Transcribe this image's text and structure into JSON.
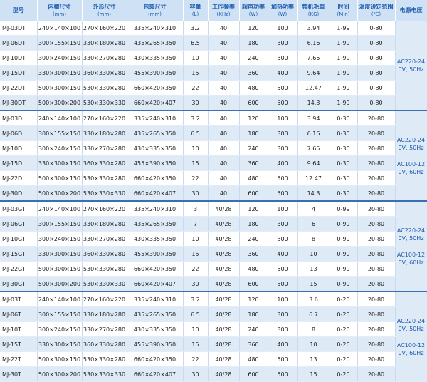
{
  "table": {
    "header": [
      {
        "title": "型号"
      },
      {
        "title": "内槽尺寸",
        "unit": "(mm)"
      },
      {
        "title": "外形尺寸",
        "unit": "(mm)"
      },
      {
        "title": "包装尺寸",
        "unit": "(mm)"
      },
      {
        "title": "容量",
        "unit": "(L)"
      },
      {
        "title": "工作频率",
        "unit": "(KHz)"
      },
      {
        "title": "超声功率",
        "unit": "(W)"
      },
      {
        "title": "加热功率",
        "unit": "(W)"
      },
      {
        "title": "整机毛重",
        "unit": "(KG)"
      },
      {
        "title": "时间",
        "unit": "(Min)"
      },
      {
        "title": "温度设定范围",
        "unit": "(℃)"
      },
      {
        "title": "电源电压"
      }
    ],
    "groups": [
      {
        "voltage": [
          "AC220-240V, 50Hz"
        ],
        "rows": [
          [
            "MJ-03DT",
            "240×140×100",
            "270×160×220",
            "335×240×310",
            "3.2",
            "40",
            "120",
            "100",
            "3.94",
            "1-99",
            "0-80"
          ],
          [
            "MJ-06DT",
            "300×155×150",
            "330×180×280",
            "435×265×350",
            "6.5",
            "40",
            "180",
            "300",
            "6.16",
            "1-99",
            "0-80"
          ],
          [
            "MJ-10DT",
            "300×240×150",
            "330×270×280",
            "430×335×350",
            "10",
            "40",
            "240",
            "300",
            "7.65",
            "1-99",
            "0-80"
          ],
          [
            "MJ-15DT",
            "330×300×150",
            "360×330×280",
            "455×390×350",
            "15",
            "40",
            "360",
            "400",
            "9.64",
            "1-99",
            "0-80"
          ],
          [
            "MJ-22DT",
            "500×300×150",
            "530×330×280",
            "660×420×350",
            "22",
            "40",
            "480",
            "500",
            "12.47",
            "1-99",
            "0-80"
          ],
          [
            "MJ-30DT",
            "500×300×200",
            "530×330×330",
            "660×420×407",
            "30",
            "40",
            "600",
            "500",
            "14.3",
            "1-99",
            "0-80"
          ]
        ]
      },
      {
        "voltage": [
          "AC220-240V, 50Hz",
          "AC100-120V, 60Hz"
        ],
        "rows": [
          [
            "MJ-03D",
            "240×140×100",
            "270×160×220",
            "335×240×310",
            "3.2",
            "40",
            "120",
            "100",
            "3.94",
            "0-30",
            "20-80"
          ],
          [
            "MJ-06D",
            "300×155×150",
            "330×180×280",
            "435×265×350",
            "6.5",
            "40",
            "180",
            "300",
            "6.16",
            "0-30",
            "20-80"
          ],
          [
            "MJ-10D",
            "300×240×150",
            "330×270×280",
            "430×335×350",
            "10",
            "40",
            "240",
            "300",
            "7.65",
            "0-30",
            "20-80"
          ],
          [
            "MJ-15D",
            "330×300×150",
            "360×330×280",
            "455×390×350",
            "15",
            "40",
            "360",
            "400",
            "9.64",
            "0-30",
            "20-80"
          ],
          [
            "MJ-22D",
            "500×300×150",
            "530×330×280",
            "660×420×350",
            "22",
            "40",
            "480",
            "500",
            "12.47",
            "0-30",
            "20-80"
          ],
          [
            "MJ-30D",
            "500×300×200",
            "530×330×330",
            "660×420×407",
            "30",
            "40",
            "600",
            "500",
            "14.3",
            "0-30",
            "20-80"
          ]
        ]
      },
      {
        "voltage": [
          "AC220-240V, 50Hz",
          "AC100-120V, 60Hz"
        ],
        "rows": [
          [
            "MJ-03GT",
            "240×140×100",
            "270×160×220",
            "335×240×310",
            "3",
            "40/28",
            "120",
            "100",
            "4",
            "0-99",
            "20-80"
          ],
          [
            "MJ-06GT",
            "300×155×150",
            "330×180×280",
            "435×265×350",
            "7",
            "40/28",
            "180",
            "300",
            "6",
            "0-99",
            "20-80"
          ],
          [
            "MJ-10GT",
            "300×240×150",
            "330×270×280",
            "430×335×350",
            "10",
            "40/28",
            "240",
            "300",
            "8",
            "0-99",
            "20-80"
          ],
          [
            "MJ-15GT",
            "330×300×150",
            "360×330×280",
            "455×390×350",
            "15",
            "40/28",
            "360",
            "400",
            "10",
            "0-99",
            "20-80"
          ],
          [
            "MJ-22GT",
            "500×300×150",
            "530×330×280",
            "660×420×350",
            "22",
            "40/28",
            "480",
            "500",
            "13",
            "0-99",
            "20-80"
          ],
          [
            "MJ-30GT",
            "500×300×200",
            "530×330×330",
            "660×420×407",
            "30",
            "40/28",
            "600",
            "500",
            "15",
            "0-99",
            "20-80"
          ]
        ]
      },
      {
        "voltage": [
          "AC220-240V, 50Hz",
          "AC100-120V, 60Hz"
        ],
        "rows": [
          [
            "MJ-03T",
            "240×140×100",
            "270×160×220",
            "335×240×310",
            "3.2",
            "40/28",
            "120",
            "100",
            "3.6",
            "0-20",
            "20-80"
          ],
          [
            "MJ-06T",
            "300×155×150",
            "330×180×280",
            "435×265×350",
            "6.5",
            "40/28",
            "180",
            "300",
            "6.7",
            "0-20",
            "20-80"
          ],
          [
            "MJ-10T",
            "300×240×150",
            "330×270×280",
            "430×335×350",
            "10",
            "40/28",
            "240",
            "300",
            "8",
            "0-20",
            "20-80"
          ],
          [
            "MJ-15T",
            "330×300×150",
            "360×330×280",
            "455×390×350",
            "15",
            "40/28",
            "360",
            "400",
            "10",
            "0-20",
            "20-80"
          ],
          [
            "MJ-22T",
            "500×300×150",
            "530×330×280",
            "660×420×350",
            "22",
            "40/28",
            "480",
            "500",
            "13",
            "0-20",
            "20-80"
          ],
          [
            "MJ-30T",
            "500×300×200",
            "530×330×330",
            "660×420×407",
            "30",
            "40/28",
            "600",
            "500",
            "15",
            "0-20",
            "20-80"
          ]
        ]
      }
    ]
  }
}
